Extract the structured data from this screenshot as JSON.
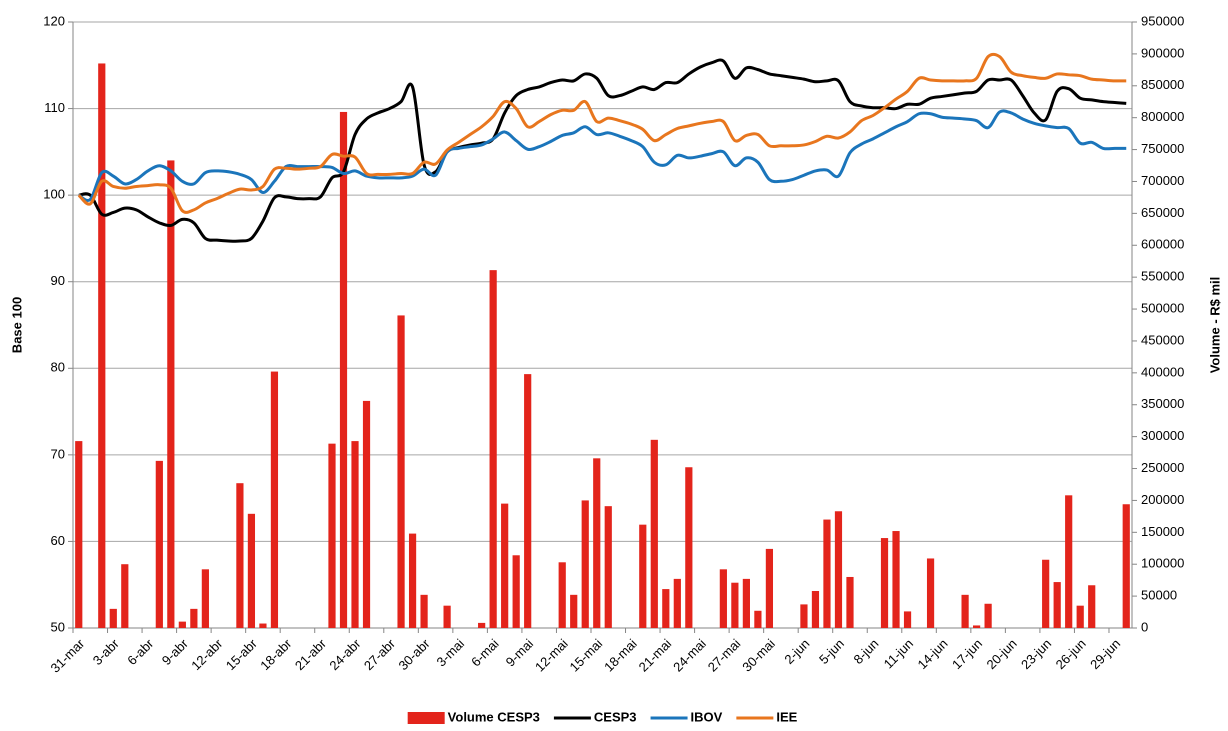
{
  "chart_data": {
    "type": "combo",
    "ylabel": "Base 100",
    "y2label": "Volume - R$ mil",
    "ylim": [
      50,
      120
    ],
    "yticks": [
      50,
      60,
      70,
      80,
      90,
      100,
      110,
      120
    ],
    "y2lim": [
      0,
      950000
    ],
    "y2ticks": [
      0,
      50000,
      100000,
      150000,
      200000,
      250000,
      300000,
      350000,
      400000,
      450000,
      500000,
      550000,
      600000,
      650000,
      700000,
      750000,
      800000,
      850000,
      900000,
      950000
    ],
    "grid": true,
    "legend": "bottom",
    "categories": [
      "31-mar",
      null,
      null,
      "3-abr",
      null,
      null,
      "6-abr",
      null,
      null,
      "9-abr",
      null,
      null,
      "12-abr",
      null,
      null,
      "15-abr",
      null,
      null,
      "18-abr",
      null,
      null,
      "21-abr",
      null,
      null,
      "24-abr",
      null,
      null,
      "27-abr",
      null,
      null,
      "30-abr",
      null,
      null,
      "3-mai",
      null,
      null,
      "6-mai",
      null,
      null,
      "9-mai",
      null,
      null,
      "12-mai",
      null,
      null,
      "15-mai",
      null,
      null,
      "18-mai",
      null,
      null,
      "21-mai",
      null,
      null,
      "24-mai",
      null,
      null,
      "27-mai",
      null,
      null,
      "30-mai",
      null,
      null,
      "2-jun",
      null,
      null,
      "5-jun",
      null,
      null,
      "8-jun",
      null,
      null,
      "11-jun",
      null,
      null,
      "14-jun",
      null,
      null,
      "17-jun",
      null,
      null,
      "20-jun",
      null,
      null,
      "23-jun",
      null,
      null,
      "26-jun",
      null,
      null,
      "29-jun",
      null
    ],
    "series": [
      {
        "name": "Volume CESP3",
        "type": "bar",
        "axis": "y2",
        "color": "#e3241b",
        "values": [
          293000,
          null,
          885000,
          30000,
          100000,
          null,
          null,
          262000,
          733000,
          10000,
          30000,
          92000,
          null,
          null,
          227000,
          179000,
          7000,
          402000,
          null,
          null,
          null,
          null,
          289000,
          809000,
          293000,
          356000,
          null,
          null,
          490000,
          148000,
          52000,
          null,
          35000,
          null,
          null,
          8000,
          561000,
          195000,
          114000,
          398000,
          null,
          null,
          103000,
          52000,
          200000,
          266000,
          191000,
          null,
          null,
          162000,
          295000,
          61000,
          77000,
          252000,
          null,
          null,
          92000,
          71000,
          77000,
          27000,
          124000,
          null,
          null,
          37000,
          58000,
          170000,
          183000,
          80000,
          null,
          null,
          141000,
          152000,
          26000,
          null,
          109000,
          null,
          null,
          52000,
          4000,
          38000,
          null,
          null,
          null,
          null,
          107000,
          72000,
          208000,
          35000,
          67000,
          null,
          null,
          194000
        ]
      },
      {
        "name": "CESP3",
        "type": "line",
        "color": "#000000",
        "values": [
          100,
          100,
          97.8,
          98,
          98.5,
          98.3,
          97.5,
          96.8,
          96.5,
          97.2,
          96.8,
          95,
          94.8,
          94.7,
          94.7,
          95,
          97,
          99.7,
          99.8,
          99.6,
          99.6,
          99.8,
          102,
          102.7,
          107,
          108.8,
          109.5,
          110,
          110.8,
          112.5,
          103.5,
          102.7,
          105,
          105.5,
          105.8,
          106,
          106.5,
          109.5,
          111.5,
          112.2,
          112.5,
          113,
          113.3,
          113.2,
          114,
          113.5,
          111.5,
          111.5,
          112,
          112.5,
          112.2,
          113,
          113,
          114,
          114.8,
          115.3,
          115.5,
          113.5,
          114.7,
          114.5,
          114,
          113.8,
          113.6,
          113.4,
          113.1,
          113.2,
          113.2,
          110.8,
          110.3,
          110.1,
          110.1,
          110,
          110.5,
          110.5,
          111.2,
          111.4,
          111.6,
          111.8,
          112,
          113.3,
          113.3,
          113.3,
          111.5,
          109.5,
          108.7,
          112,
          112.3,
          111.2,
          111,
          110.8,
          110.7,
          110.6
        ]
      },
      {
        "name": "IBOV",
        "type": "line",
        "color": "#1b75bb",
        "values": [
          100,
          99.5,
          102.6,
          102.2,
          101.3,
          101.8,
          102.8,
          103.4,
          102.8,
          101.6,
          101.3,
          102.6,
          102.8,
          102.7,
          102.4,
          101.8,
          100.3,
          101.6,
          103.3,
          103.3,
          103.3,
          103.3,
          103.2,
          102.5,
          102.8,
          102.2,
          102,
          102,
          102,
          102.2,
          103,
          102.3,
          105,
          105.4,
          105.6,
          105.8,
          106.5,
          107.3,
          106.3,
          105.3,
          105.6,
          106.2,
          106.9,
          107.2,
          107.9,
          107,
          107.2,
          106.8,
          106.3,
          105.6,
          103.8,
          103.5,
          104.6,
          104.3,
          104.5,
          104.8,
          105,
          103.4,
          104.3,
          103.8,
          101.8,
          101.6,
          101.8,
          102.3,
          102.8,
          102.9,
          102.2,
          104.9,
          105.9,
          106.5,
          107.2,
          107.9,
          108.5,
          109.4,
          109.4,
          109,
          108.9,
          108.8,
          108.6,
          107.8,
          109.6,
          109.5,
          108.8,
          108.3,
          108,
          107.8,
          107.7,
          106,
          106.1,
          105.4,
          105.4,
          105.4
        ]
      },
      {
        "name": "IEE",
        "type": "line",
        "color": "#e8761e",
        "values": [
          100,
          99,
          101.6,
          101,
          100.8,
          101,
          101.1,
          101.2,
          100.8,
          98.2,
          98.3,
          99.1,
          99.6,
          100.2,
          100.7,
          100.6,
          101,
          103,
          103.1,
          103,
          103.1,
          103.3,
          104.7,
          104.5,
          104.4,
          102.5,
          102.4,
          102.4,
          102.5,
          102.5,
          103.8,
          103.6,
          105.2,
          106.1,
          107,
          107.9,
          109.1,
          110.8,
          110,
          107.9,
          108.5,
          109.3,
          109.8,
          109.8,
          110.8,
          108.5,
          108.9,
          108.6,
          108.2,
          107.6,
          106.3,
          107,
          107.7,
          108,
          108.3,
          108.5,
          108.5,
          106.3,
          106.9,
          107,
          105.7,
          105.7,
          105.7,
          105.8,
          106.2,
          106.8,
          106.6,
          107.3,
          108.6,
          109.2,
          110.1,
          111.1,
          112,
          113.5,
          113.3,
          113.2,
          113.2,
          113.2,
          113.5,
          116,
          116,
          114.2,
          113.8,
          113.6,
          113.5,
          114,
          113.9,
          113.8,
          113.4,
          113.3,
          113.2,
          113.2
        ]
      }
    ]
  }
}
